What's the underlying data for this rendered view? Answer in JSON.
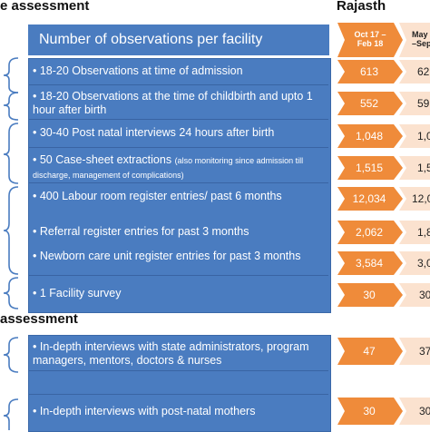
{
  "top_section": {
    "title": "e assessment",
    "region_title": "Rajasth",
    "header": "Number of observations per facility",
    "col1_header": [
      "Oct 17 –",
      "Feb 18"
    ],
    "col2_header": [
      "May",
      "–Sep"
    ],
    "rows": [
      {
        "label": "• 18-20 Observations at time of admission",
        "small": "",
        "v1": "613",
        "v2": "62"
      },
      {
        "label": "• 18-20 Observations at the time of childbirth and upto 1 hour after birth",
        "small": "",
        "v1": "552",
        "v2": "59"
      },
      {
        "label": "• 30-40 Post natal interviews 24 hours after birth",
        "small": "",
        "v1": "1,048",
        "v2": "1,0"
      },
      {
        "label": "• 50 Case-sheet extractions",
        "small": "(also monitoring since admission till discharge, management of complications)",
        "v1": "1,515",
        "v2": "1,5"
      },
      {
        "label": "• 400 Labour room register entries/ past 6 months",
        "small": "",
        "v1": "12,034",
        "v2": "12,0"
      },
      {
        "label": "• Referral register entries for past 3 months",
        "small": "",
        "v1": "2,062",
        "v2": "1,8"
      },
      {
        "label": "• Newborn care unit register entries for past 3 months",
        "small": "",
        "v1": "3,584",
        "v2": "3,0"
      },
      {
        "label": "• 1 Facility survey",
        "small": "",
        "v1": "30",
        "v2": "30"
      }
    ]
  },
  "bottom_section": {
    "title": "assessment",
    "rows": [
      {
        "label": "• In-depth interviews with state administrators, program managers, mentors, doctors & nurses",
        "v1": "47",
        "v2": "37"
      },
      {
        "label": "• In-depth interviews with post-natal mothers",
        "v1": "30",
        "v2": "30"
      }
    ]
  },
  "colors": {
    "blue": "#4a7cc0",
    "orange": "#ef8b3a",
    "peach": "#fbe2cf"
  }
}
